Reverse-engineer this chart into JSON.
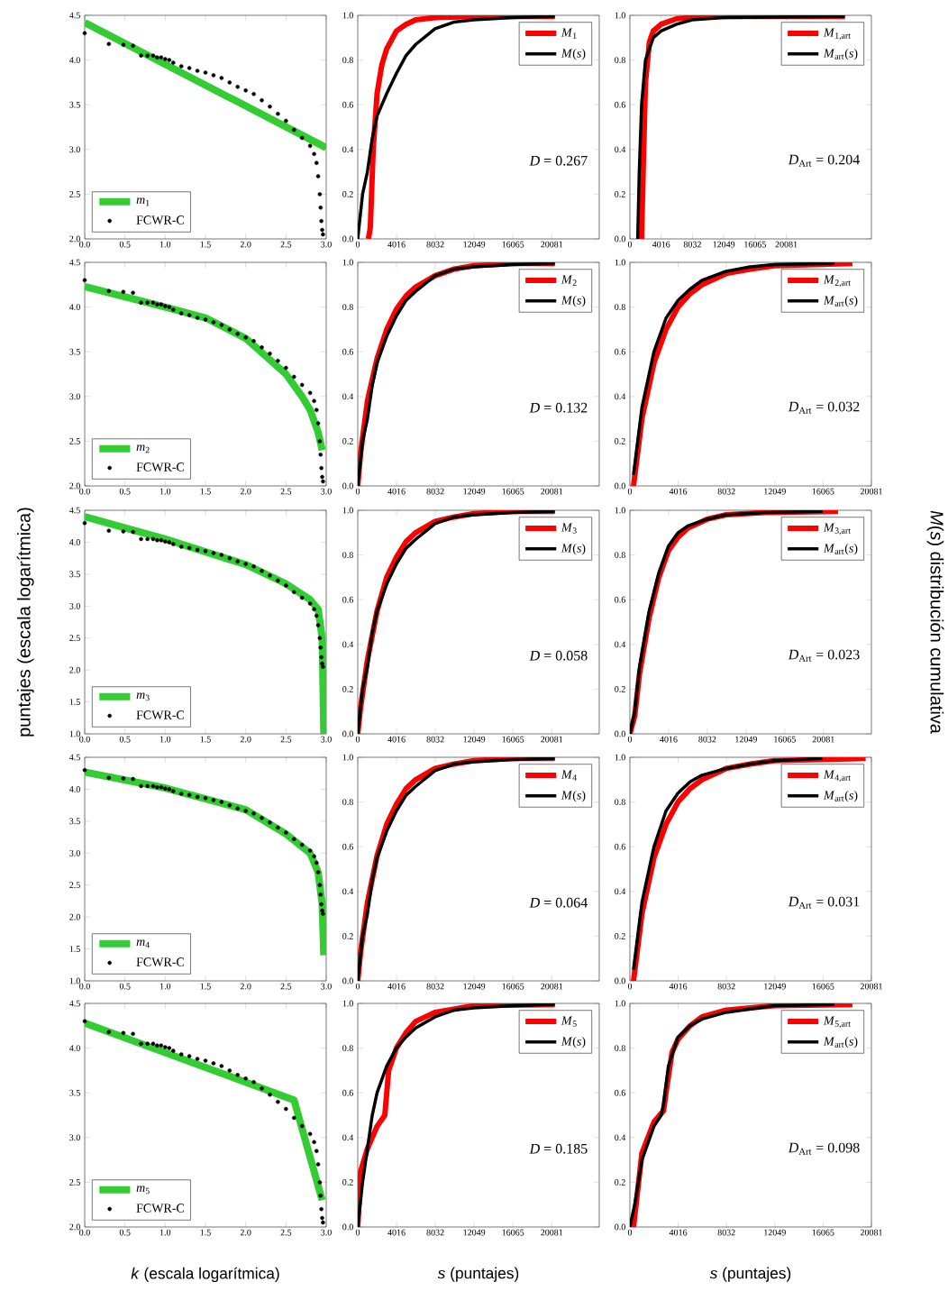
{
  "chart_data": [
    {
      "type": "line",
      "ylabel": null,
      "xlim": [
        0,
        3
      ],
      "ylim": [
        2,
        4.5
      ],
      "xticks": [
        {
          "value": 0,
          "label": "0.0"
        },
        0.5,
        {
          "value": 1,
          "label": "1.0"
        },
        1.5,
        {
          "value": 2,
          "label": "2.0"
        },
        2.5,
        {
          "value": 3,
          "label": "3.0"
        }
      ],
      "yticks": [
        {
          "value": 2,
          "label": "2.0"
        },
        2.5,
        {
          "value": 3,
          "label": "3.0"
        },
        3.5,
        {
          "value": 4,
          "label": "4.0"
        },
        4.5
      ],
      "legend": "bottom left",
      "series": [
        {
          "name": "*m*$_{1}$",
          "color": "#33cc33",
          "x": [
            0,
            3
          ],
          "values": [
            4.42,
            3.02
          ]
        },
        {
          "name": "FCWR-C",
          "type": "scatter",
          "marker": "circle",
          "color": "#000000",
          "x": [
            0,
            0.3,
            0.48,
            0.6,
            0.7,
            0.78,
            0.85,
            0.9,
            0.95,
            1.0,
            1.05,
            1.1,
            1.2,
            1.3,
            1.4,
            1.5,
            1.6,
            1.7,
            1.8,
            1.9,
            2.0,
            2.1,
            2.2,
            2.3,
            2.4,
            2.5,
            2.6,
            2.7,
            2.8,
            2.85,
            2.88,
            2.9,
            2.92,
            2.93,
            2.94,
            2.95,
            2.96
          ],
          "values": [
            4.3,
            4.18,
            4.17,
            4.16,
            4.05,
            4.05,
            4.05,
            4.03,
            4.03,
            4.01,
            4.0,
            3.97,
            3.93,
            3.91,
            3.88,
            3.86,
            3.83,
            3.8,
            3.75,
            3.7,
            3.66,
            3.62,
            3.55,
            3.48,
            3.4,
            3.32,
            3.22,
            3.13,
            3.04,
            2.95,
            2.85,
            2.7,
            2.5,
            2.35,
            2.2,
            2.1,
            2.05
          ]
        }
      ]
    },
    {
      "type": "line",
      "xlim": [
        0,
        25000
      ],
      "ylim": [
        0,
        1
      ],
      "xticks": [
        0,
        4016,
        8032,
        12049,
        16065,
        20081
      ],
      "yticks": [
        {
          "value": 0,
          "label": "0.0"
        },
        0.2,
        0.4,
        0.6,
        0.8,
        {
          "value": 1,
          "label": "1.0"
        }
      ],
      "legend": "top right",
      "annotations": [
        "*D* = 0.267"
      ],
      "series": [
        {
          "name": "*M*$_{1}$",
          "color": "#ff0000",
          "x": [
            1100,
            1300,
            1600,
            2000,
            2500,
            3000,
            4000,
            5000,
            6000,
            8000,
            12000,
            20400
          ],
          "values": [
            0,
            0.05,
            0.4,
            0.65,
            0.78,
            0.85,
            0.93,
            0.96,
            0.98,
            0.99,
            0.995,
            0.995
          ]
        },
        {
          "name": "*M*(*s*)",
          "color": "#000000",
          "x": [
            0,
            500,
            1000,
            1500,
            2000,
            3000,
            4000,
            5000,
            6000,
            8000,
            10000,
            12000,
            16000,
            20400
          ],
          "values": [
            0,
            0.2,
            0.3,
            0.45,
            0.55,
            0.65,
            0.74,
            0.82,
            0.87,
            0.94,
            0.97,
            0.98,
            0.99,
            0.995
          ]
        }
      ]
    },
    {
      "type": "line",
      "xlim": [
        0,
        31000
      ],
      "ylim": [
        0,
        1
      ],
      "xticks": [
        0,
        4016,
        8032,
        12049,
        16065,
        20081
      ],
      "yticks": [
        {
          "value": 0,
          "label": "0.0"
        },
        0.2,
        0.4,
        0.6,
        0.8,
        {
          "value": 1,
          "label": "1.0"
        }
      ],
      "legend": "top right",
      "annotations": [
        "*D*$_{Art}$ = 0.204"
      ],
      "series": [
        {
          "name": "*M*$_{1,art}$",
          "color": "#ff0000",
          "x": [
            1500,
            1700,
            2000,
            2500,
            3000,
            4000,
            6000,
            10000,
            27600
          ],
          "values": [
            0,
            0.3,
            0.7,
            0.88,
            0.93,
            0.96,
            0.985,
            0.995,
            0.995
          ]
        },
        {
          "name": "*M*$_{art}$(*s*)",
          "color": "#000000",
          "x": [
            1000,
            1200,
            1500,
            2000,
            3000,
            4000,
            6000,
            8000,
            12000,
            27600
          ],
          "values": [
            0,
            0.3,
            0.6,
            0.8,
            0.9,
            0.93,
            0.96,
            0.98,
            0.99,
            0.995
          ]
        }
      ]
    },
    {
      "type": "line",
      "xlim": [
        0,
        3
      ],
      "ylim": [
        2,
        4.5
      ],
      "xticks": [
        {
          "value": 0,
          "label": "0.0"
        },
        0.5,
        {
          "value": 1,
          "label": "1.0"
        },
        1.5,
        {
          "value": 2,
          "label": "2.0"
        },
        2.5,
        {
          "value": 3,
          "label": "3.0"
        }
      ],
      "yticks": [
        {
          "value": 2,
          "label": "2.0"
        },
        2.5,
        {
          "value": 3,
          "label": "3.0"
        },
        3.5,
        {
          "value": 4,
          "label": "4.0"
        },
        4.5
      ],
      "legend": "bottom left",
      "series": [
        {
          "name": "*m*$_{2}$",
          "color": "#33cc33",
          "x": [
            0,
            1.0,
            1.5,
            2.0,
            2.5,
            2.7,
            2.8,
            2.9,
            2.95
          ],
          "values": [
            4.23,
            4.0,
            3.88,
            3.65,
            3.25,
            3.0,
            2.85,
            2.6,
            2.4
          ]
        },
        {
          "name": "FCWR-C",
          "type": "scatter",
          "marker": "circle",
          "color": "#000000",
          "x": [
            0,
            0.3,
            0.48,
            0.6,
            0.7,
            0.78,
            0.85,
            0.9,
            0.95,
            1.0,
            1.05,
            1.1,
            1.2,
            1.3,
            1.4,
            1.5,
            1.6,
            1.7,
            1.8,
            1.9,
            2.0,
            2.1,
            2.2,
            2.3,
            2.4,
            2.5,
            2.6,
            2.7,
            2.8,
            2.85,
            2.88,
            2.9,
            2.92,
            2.93,
            2.94,
            2.95,
            2.96
          ],
          "values": [
            4.3,
            4.18,
            4.17,
            4.16,
            4.05,
            4.05,
            4.05,
            4.03,
            4.03,
            4.01,
            4.0,
            3.97,
            3.93,
            3.91,
            3.88,
            3.86,
            3.83,
            3.8,
            3.75,
            3.7,
            3.66,
            3.62,
            3.55,
            3.48,
            3.4,
            3.32,
            3.22,
            3.13,
            3.04,
            2.95,
            2.85,
            2.7,
            2.5,
            2.35,
            2.2,
            2.1,
            2.05
          ]
        }
      ]
    },
    {
      "type": "line",
      "xlim": [
        0,
        25000
      ],
      "ylim": [
        0,
        1
      ],
      "xticks": [
        0,
        4016,
        8032,
        12049,
        16065,
        20081
      ],
      "yticks": [
        {
          "value": 0,
          "label": "0.0"
        },
        0.2,
        0.4,
        0.6,
        0.8,
        {
          "value": 1,
          "label": "1.0"
        }
      ],
      "legend": "top right",
      "annotations": [
        "*D* = 0.132"
      ],
      "series": [
        {
          "name": "*M*$_{2}$",
          "color": "#ff0000",
          "x": [
            0,
            300,
            1000,
            2000,
            3000,
            4000,
            5000,
            6000,
            8000,
            10000,
            12000,
            16000,
            20400
          ],
          "values": [
            0,
            0.15,
            0.38,
            0.57,
            0.7,
            0.79,
            0.85,
            0.89,
            0.94,
            0.97,
            0.985,
            0.995,
            0.995
          ]
        },
        {
          "name": "*M*(*s*)",
          "color": "#000000",
          "x": [
            0,
            500,
            1000,
            1500,
            2000,
            3000,
            4000,
            5000,
            6000,
            8000,
            10000,
            12000,
            16000,
            20400
          ],
          "values": [
            0,
            0.2,
            0.3,
            0.45,
            0.55,
            0.67,
            0.76,
            0.83,
            0.87,
            0.94,
            0.97,
            0.98,
            0.99,
            0.995
          ]
        }
      ]
    },
    {
      "type": "line",
      "xlim": [
        0,
        20081
      ],
      "ylim": [
        0,
        1
      ],
      "xticks": [
        0,
        4016,
        8032,
        12049,
        16065,
        20081
      ],
      "yticks": [
        {
          "value": 0,
          "label": "0.0"
        },
        0.2,
        0.4,
        0.6,
        0.8,
        {
          "value": 1,
          "label": "1.0"
        }
      ],
      "legend": "top right",
      "annotations": [
        "*D*$_{Art}$ = 0.032"
      ],
      "series": [
        {
          "name": "*M*$_{2,art}$",
          "color": "#ff0000",
          "x": [
            300,
            1000,
            2000,
            3000,
            4000,
            5000,
            6000,
            8000,
            10000,
            12000,
            18500
          ],
          "values": [
            0,
            0.3,
            0.55,
            0.7,
            0.8,
            0.86,
            0.9,
            0.95,
            0.97,
            0.985,
            0.995
          ]
        },
        {
          "name": "*M*$_{art}$(*s*)",
          "color": "#000000",
          "x": [
            300,
            1000,
            2000,
            3000,
            4000,
            5000,
            6000,
            8000,
            10000,
            12000,
            17000
          ],
          "values": [
            0.05,
            0.35,
            0.6,
            0.75,
            0.83,
            0.88,
            0.92,
            0.96,
            0.98,
            0.99,
            0.995
          ]
        }
      ]
    },
    {
      "type": "line",
      "ylabel": "puntajes (escala logarítmica)",
      "xlim": [
        0,
        3
      ],
      "ylim": [
        1,
        4.5
      ],
      "xticks": [
        {
          "value": 0,
          "label": "0.0"
        },
        0.5,
        {
          "value": 1,
          "label": "1.0"
        },
        1.5,
        {
          "value": 2,
          "label": "2.0"
        },
        2.5,
        {
          "value": 3,
          "label": "3.0"
        }
      ],
      "yticks": [
        {
          "value": 1,
          "label": "1.0"
        },
        1.5,
        {
          "value": 2,
          "label": "2.0"
        },
        2.5,
        {
          "value": 3,
          "label": "3.0"
        },
        3.5,
        {
          "value": 4,
          "label": "4.0"
        },
        4.5
      ],
      "legend": "bottom left",
      "series": [
        {
          "name": "*m*$_{3}$",
          "color": "#33cc33",
          "x": [
            0,
            1.0,
            2.0,
            2.5,
            2.8,
            2.9,
            2.95,
            2.97
          ],
          "values": [
            4.4,
            4.05,
            3.65,
            3.35,
            3.1,
            2.95,
            2.5,
            1.0
          ]
        },
        {
          "name": "FCWR-C",
          "type": "scatter",
          "marker": "circle",
          "color": "#000000",
          "x": [
            0,
            0.3,
            0.48,
            0.6,
            0.7,
            0.78,
            0.85,
            0.9,
            0.95,
            1.0,
            1.05,
            1.1,
            1.2,
            1.3,
            1.4,
            1.5,
            1.6,
            1.7,
            1.8,
            1.9,
            2.0,
            2.1,
            2.2,
            2.3,
            2.4,
            2.5,
            2.6,
            2.7,
            2.8,
            2.85,
            2.88,
            2.9,
            2.92,
            2.93,
            2.94,
            2.95,
            2.96
          ],
          "values": [
            4.3,
            4.18,
            4.17,
            4.16,
            4.05,
            4.05,
            4.05,
            4.03,
            4.03,
            4.01,
            4.0,
            3.97,
            3.93,
            3.91,
            3.88,
            3.86,
            3.83,
            3.8,
            3.75,
            3.7,
            3.66,
            3.62,
            3.55,
            3.48,
            3.4,
            3.32,
            3.22,
            3.13,
            3.04,
            2.95,
            2.85,
            2.7,
            2.5,
            2.35,
            2.2,
            2.1,
            2.05
          ]
        }
      ]
    },
    {
      "type": "line",
      "xlim": [
        0,
        25000
      ],
      "ylim": [
        0,
        1
      ],
      "xticks": [
        0,
        4016,
        8032,
        12049,
        16065,
        20081
      ],
      "yticks": [
        {
          "value": 0,
          "label": "0.0"
        },
        0.2,
        0.4,
        0.6,
        0.8,
        {
          "value": 1,
          "label": "1.0"
        }
      ],
      "legend": "top right",
      "annotations": [
        "*D* = 0.058"
      ],
      "series": [
        {
          "name": "*M*$_{3}$",
          "color": "#ff0000",
          "x": [
            0,
            300,
            1000,
            2000,
            3000,
            4000,
            5000,
            6000,
            8000,
            10000,
            12000,
            16000,
            20400
          ],
          "values": [
            0,
            0.12,
            0.33,
            0.55,
            0.7,
            0.79,
            0.86,
            0.9,
            0.95,
            0.97,
            0.985,
            0.995,
            0.995
          ]
        },
        {
          "name": "*M*(*s*)",
          "color": "#000000",
          "x": [
            0,
            500,
            1000,
            1500,
            2000,
            3000,
            4000,
            5000,
            6000,
            8000,
            10000,
            12000,
            16000,
            20400
          ],
          "values": [
            0,
            0.2,
            0.3,
            0.45,
            0.55,
            0.67,
            0.76,
            0.83,
            0.87,
            0.94,
            0.97,
            0.98,
            0.99,
            0.995
          ]
        }
      ]
    },
    {
      "type": "line",
      "y2label": "*M*(*s*) distribución cumulativa",
      "xlim": [
        0,
        25054
      ],
      "ylim": [
        0,
        1
      ],
      "xticks": [
        0,
        4016,
        8032,
        12049,
        16065,
        20081
      ],
      "yticks": [
        {
          "value": 0,
          "label": "0.0"
        },
        0.2,
        0.4,
        0.6,
        0.8,
        {
          "value": 1,
          "label": "1.0"
        }
      ],
      "legend": "top right",
      "annotations": [
        "*D*$_{Art}$ = 0.023"
      ],
      "series": [
        {
          "name": "*M*$_{3,art}$",
          "color": "#ff0000",
          "x": [
            0,
            500,
            1000,
            2000,
            3000,
            4000,
            5000,
            6000,
            8000,
            10000,
            14000,
            21600
          ],
          "values": [
            0,
            0.08,
            0.27,
            0.52,
            0.7,
            0.82,
            0.88,
            0.92,
            0.96,
            0.98,
            0.99,
            0.995
          ]
        },
        {
          "name": "*M*$_{art}$(*s*)",
          "color": "#000000",
          "x": [
            0,
            500,
            1000,
            2000,
            3000,
            4000,
            5000,
            6000,
            8000,
            10000,
            14000,
            20000
          ],
          "values": [
            0,
            0.1,
            0.3,
            0.55,
            0.72,
            0.84,
            0.9,
            0.93,
            0.96,
            0.98,
            0.99,
            0.995
          ]
        }
      ]
    },
    {
      "type": "line",
      "xlim": [
        0,
        3
      ],
      "ylim": [
        1,
        4.5
      ],
      "xticks": [
        {
          "value": 0,
          "label": "0.0"
        },
        0.5,
        {
          "value": 1,
          "label": "1.0"
        },
        1.5,
        {
          "value": 2,
          "label": "2.0"
        },
        2.5,
        {
          "value": 3,
          "label": "3.0"
        }
      ],
      "yticks": [
        {
          "value": 1,
          "label": "1.0"
        },
        1.5,
        {
          "value": 2,
          "label": "2.0"
        },
        2.5,
        {
          "value": 3,
          "label": "3.0"
        },
        3.5,
        {
          "value": 4,
          "label": "4.0"
        },
        4.5
      ],
      "legend": "bottom left",
      "series": [
        {
          "name": "*m*$_{4}$",
          "color": "#33cc33",
          "x": [
            0,
            1,
            2,
            2.5,
            2.8,
            2.9,
            2.95,
            2.97
          ],
          "values": [
            4.27,
            4.02,
            3.68,
            3.3,
            3.0,
            2.7,
            2.2,
            1.4
          ]
        },
        {
          "name": "FCWR-C",
          "type": "scatter",
          "marker": "circle",
          "color": "#000000",
          "x": [
            0,
            0.3,
            0.48,
            0.6,
            0.7,
            0.78,
            0.85,
            0.9,
            0.95,
            1.0,
            1.05,
            1.1,
            1.2,
            1.3,
            1.4,
            1.5,
            1.6,
            1.7,
            1.8,
            1.9,
            2.0,
            2.1,
            2.2,
            2.3,
            2.4,
            2.5,
            2.6,
            2.7,
            2.8,
            2.85,
            2.88,
            2.9,
            2.92,
            2.93,
            2.94,
            2.95,
            2.96
          ],
          "values": [
            4.3,
            4.18,
            4.17,
            4.16,
            4.05,
            4.05,
            4.05,
            4.03,
            4.03,
            4.01,
            4.0,
            3.97,
            3.93,
            3.91,
            3.88,
            3.86,
            3.83,
            3.8,
            3.75,
            3.7,
            3.66,
            3.62,
            3.55,
            3.48,
            3.4,
            3.32,
            3.22,
            3.13,
            3.04,
            2.95,
            2.85,
            2.7,
            2.5,
            2.35,
            2.2,
            2.1,
            2.05
          ]
        }
      ]
    },
    {
      "type": "line",
      "xlim": [
        0,
        25000
      ],
      "ylim": [
        0,
        1
      ],
      "xticks": [
        0,
        4016,
        8032,
        12049,
        16065,
        20081
      ],
      "yticks": [
        {
          "value": 0,
          "label": "0.0"
        },
        0.2,
        0.4,
        0.6,
        0.8,
        {
          "value": 1,
          "label": "1.0"
        }
      ],
      "legend": "top right",
      "annotations": [
        "*D* = 0.064"
      ],
      "series": [
        {
          "name": "*M*$_{4}$",
          "color": "#ff0000",
          "x": [
            0,
            300,
            1000,
            2000,
            3000,
            4000,
            5000,
            6000,
            8000,
            10000,
            12000,
            16000,
            20400
          ],
          "values": [
            0,
            0.13,
            0.35,
            0.56,
            0.7,
            0.79,
            0.86,
            0.9,
            0.95,
            0.97,
            0.985,
            0.995,
            0.995
          ]
        },
        {
          "name": "*M*(*s*)",
          "color": "#000000",
          "x": [
            0,
            500,
            1000,
            1500,
            2000,
            3000,
            4000,
            5000,
            6000,
            8000,
            10000,
            12000,
            16000,
            20400
          ],
          "values": [
            0,
            0.2,
            0.3,
            0.45,
            0.55,
            0.67,
            0.76,
            0.83,
            0.87,
            0.94,
            0.97,
            0.98,
            0.99,
            0.995
          ]
        }
      ]
    },
    {
      "type": "line",
      "xlim": [
        0,
        20081
      ],
      "ylim": [
        0,
        1
      ],
      "xticks": [
        0,
        4016,
        8032,
        12049,
        16065,
        20081
      ],
      "yticks": [
        {
          "value": 0,
          "label": "0.0"
        },
        0.2,
        0.4,
        0.6,
        0.8,
        {
          "value": 1,
          "label": "1.0"
        }
      ],
      "legend": "top right",
      "annotations": [
        "*D*$_{Art}$ = 0.031"
      ],
      "series": [
        {
          "name": "*M*$_{4,art}$",
          "color": "#ff0000",
          "x": [
            300,
            1000,
            2000,
            3000,
            4000,
            5000,
            6000,
            8000,
            10000,
            12000,
            19600
          ],
          "values": [
            0,
            0.3,
            0.55,
            0.7,
            0.8,
            0.86,
            0.9,
            0.95,
            0.97,
            0.985,
            0.995
          ]
        },
        {
          "name": "*M*$_{art}$(*s*)",
          "color": "#000000",
          "x": [
            300,
            1000,
            2000,
            3000,
            4000,
            5000,
            6000,
            8000,
            10000,
            12000,
            16000
          ],
          "values": [
            0.05,
            0.35,
            0.6,
            0.76,
            0.84,
            0.89,
            0.92,
            0.95,
            0.97,
            0.985,
            0.995
          ]
        }
      ]
    },
    {
      "type": "line",
      "xlabel": "*k* (escala logarítmica)",
      "xlim": [
        0,
        3
      ],
      "ylim": [
        2,
        4.5
      ],
      "xticks": [
        {
          "value": 0,
          "label": "0.0"
        },
        0.5,
        {
          "value": 1,
          "label": "1.0"
        },
        1.5,
        {
          "value": 2,
          "label": "2.0"
        },
        2.5,
        {
          "value": 3,
          "label": "3.0"
        }
      ],
      "yticks": [
        {
          "value": 2,
          "label": "2.0"
        },
        2.5,
        {
          "value": 3,
          "label": "3.0"
        },
        3.5,
        {
          "value": 4,
          "label": "4.0"
        },
        4.5
      ],
      "legend": "bottom left",
      "series": [
        {
          "name": "*m*$_{5}$",
          "color": "#33cc33",
          "x": [
            0,
            2.6,
            2.95
          ],
          "values": [
            4.28,
            3.42,
            2.3
          ]
        },
        {
          "name": "FCWR-C",
          "type": "scatter",
          "marker": "circle",
          "color": "#000000",
          "x": [
            0,
            0.3,
            0.48,
            0.6,
            0.7,
            0.78,
            0.85,
            0.9,
            0.95,
            1.0,
            1.05,
            1.1,
            1.2,
            1.3,
            1.4,
            1.5,
            1.6,
            1.7,
            1.8,
            1.9,
            2.0,
            2.1,
            2.2,
            2.3,
            2.4,
            2.5,
            2.6,
            2.7,
            2.8,
            2.85,
            2.88,
            2.9,
            2.92,
            2.93,
            2.94,
            2.95,
            2.96
          ],
          "values": [
            4.3,
            4.18,
            4.17,
            4.16,
            4.05,
            4.05,
            4.05,
            4.03,
            4.03,
            4.01,
            4.0,
            3.97,
            3.93,
            3.91,
            3.88,
            3.86,
            3.83,
            3.8,
            3.75,
            3.7,
            3.66,
            3.62,
            3.55,
            3.48,
            3.4,
            3.32,
            3.22,
            3.13,
            3.04,
            2.95,
            2.85,
            2.7,
            2.5,
            2.35,
            2.2,
            2.1,
            2.05
          ]
        }
      ]
    },
    {
      "type": "line",
      "xlabel": "*s* (puntajes)",
      "xlim": [
        0,
        25000
      ],
      "ylim": [
        0,
        1
      ],
      "xticks": [
        0,
        4016,
        8032,
        12049,
        16065,
        20081
      ],
      "yticks": [
        {
          "value": 0,
          "label": "0.0"
        },
        0.2,
        0.4,
        0.6,
        0.8,
        {
          "value": 1,
          "label": "1.0"
        }
      ],
      "legend": "top right",
      "annotations": [
        "*D* = 0.185"
      ],
      "series": [
        {
          "name": "*M*$_{5}$",
          "color": "#ff0000",
          "x": [
            0,
            300,
            1000,
            2000,
            2800,
            3200,
            4000,
            5000,
            6000,
            8000,
            12000,
            20400
          ],
          "values": [
            0,
            0.25,
            0.35,
            0.45,
            0.5,
            0.7,
            0.8,
            0.87,
            0.92,
            0.96,
            0.99,
            0.995
          ]
        },
        {
          "name": "*M*(*s*)",
          "color": "#000000",
          "x": [
            0,
            500,
            1000,
            1500,
            2000,
            3000,
            4000,
            5000,
            6000,
            8000,
            10000,
            12000,
            16000,
            20400
          ],
          "values": [
            0,
            0.2,
            0.35,
            0.5,
            0.6,
            0.72,
            0.8,
            0.85,
            0.89,
            0.94,
            0.97,
            0.98,
            0.99,
            0.995
          ]
        }
      ]
    },
    {
      "type": "line",
      "xlabel": "*s* (puntajes)",
      "xlim": [
        0,
        20081
      ],
      "ylim": [
        0,
        1
      ],
      "xticks": [
        0,
        4016,
        8032,
        12049,
        16065,
        20081
      ],
      "yticks": [
        {
          "value": 0,
          "label": "0.0"
        },
        0.2,
        0.4,
        0.6,
        0.8,
        {
          "value": 1,
          "label": "1.0"
        }
      ],
      "legend": "top right",
      "annotations": [
        "*D*$_{Art}$ = 0.098"
      ],
      "series": [
        {
          "name": "*M*$_{5,art}$",
          "color": "#ff0000",
          "x": [
            300,
            1000,
            2000,
            2800,
            3000,
            3500,
            4000,
            5000,
            6000,
            8000,
            12000,
            18500
          ],
          "values": [
            0,
            0.33,
            0.47,
            0.52,
            0.6,
            0.78,
            0.84,
            0.9,
            0.94,
            0.97,
            0.99,
            0.995
          ]
        },
        {
          "name": "*M*$_{art}$(*s*)",
          "color": "#000000",
          "x": [
            0,
            400,
            1000,
            2000,
            2600,
            2800,
            3200,
            4000,
            5000,
            6000,
            8000,
            12000,
            17000
          ],
          "values": [
            0,
            0.1,
            0.3,
            0.45,
            0.5,
            0.55,
            0.72,
            0.85,
            0.9,
            0.93,
            0.96,
            0.99,
            0.995
          ]
        }
      ]
    }
  ]
}
